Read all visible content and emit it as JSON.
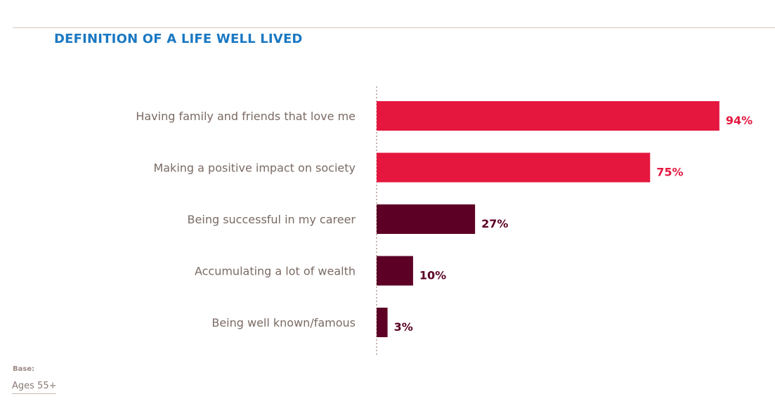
{
  "title": "DEFINITION OF A LIFE WELL LIVED",
  "footer": {
    "base_label": "Base:",
    "base_value": "Ages 55+"
  },
  "colors": {
    "title": "#1a78c2",
    "highlight_bar": "#e5173f",
    "secondary_bar": "#5c0025",
    "category_text": "#7a6a63",
    "axis_dots": "#c4b4ae"
  },
  "chart_data": {
    "type": "bar",
    "orientation": "horizontal",
    "categories": [
      "Having family and friends that love me",
      "Making a positive impact on society",
      "Being successful in my career",
      "Accumulating a lot of wealth",
      "Being well known/famous"
    ],
    "values": [
      94,
      75,
      27,
      10,
      3
    ],
    "value_labels": [
      "94%",
      "75%",
      "27%",
      "10%",
      "3%"
    ],
    "bar_colors": [
      "#e5173f",
      "#e5173f",
      "#5c0025",
      "#5c0025",
      "#5c0025"
    ],
    "xlim": [
      0,
      100
    ],
    "grid": false,
    "title": "DEFINITION OF A LIFE WELL LIVED"
  }
}
